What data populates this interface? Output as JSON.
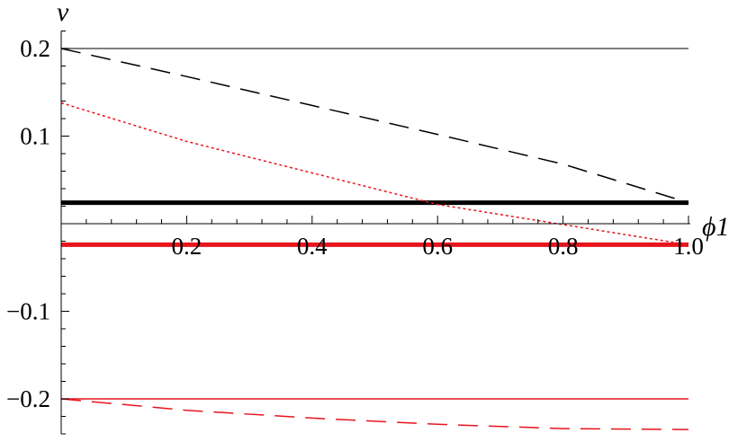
{
  "chart_data": {
    "type": "line",
    "title": "",
    "xlabel": "ϕ1",
    "ylabel": "v",
    "xlim": [
      0,
      1.0
    ],
    "ylim": [
      -0.24,
      0.22
    ],
    "x_ticks": [
      {
        "value": 0.2,
        "label": "0.2"
      },
      {
        "value": 0.4,
        "label": "0.4"
      },
      {
        "value": 0.6,
        "label": "0.6"
      },
      {
        "value": 0.8,
        "label": "0.8"
      },
      {
        "value": 1.0,
        "label": "1.0"
      }
    ],
    "y_ticks": [
      {
        "value": 0.2,
        "label": "0.2"
      },
      {
        "value": 0.1,
        "label": "0.1"
      },
      {
        "value": -0.1,
        "label": "−0.1"
      },
      {
        "value": -0.2,
        "label": "−0.2"
      }
    ],
    "grid": false,
    "legend": "none",
    "series": [
      {
        "color": "#555555",
        "style": "solid",
        "width": 1.5,
        "x": [
          0,
          1.0
        ],
        "y": [
          0.2,
          0.2
        ]
      },
      {
        "color": "#000000",
        "style": "dashed",
        "width": 1.5,
        "x": [
          0,
          0.2,
          0.4,
          0.6,
          0.8,
          1.0
        ],
        "y": [
          0.2,
          0.168,
          0.135,
          0.102,
          0.068,
          0.024
        ]
      },
      {
        "color": "#000000",
        "style": "solid",
        "width": 5,
        "x": [
          0,
          1.0
        ],
        "y": [
          0.024,
          0.024
        ]
      },
      {
        "color": "#e8141c",
        "style": "dotted",
        "width": 1.5,
        "x": [
          0,
          0.2,
          0.4,
          0.6,
          0.8,
          1.0
        ],
        "y": [
          0.138,
          0.094,
          0.058,
          0.022,
          -0.001,
          -0.024
        ]
      },
      {
        "color": "#e8141c",
        "style": "solid",
        "width": 5,
        "x": [
          0,
          1.0
        ],
        "y": [
          -0.024,
          -0.024
        ]
      },
      {
        "color": "#e8141c",
        "style": "solid",
        "width": 1.5,
        "x": [
          0,
          1.0
        ],
        "y": [
          -0.2,
          -0.2
        ]
      },
      {
        "color": "#e8141c",
        "style": "dashed",
        "width": 1.5,
        "x": [
          0,
          0.2,
          0.4,
          0.6,
          0.8,
          1.0
        ],
        "y": [
          -0.2,
          -0.213,
          -0.222,
          -0.229,
          -0.234,
          -0.235
        ]
      }
    ]
  }
}
